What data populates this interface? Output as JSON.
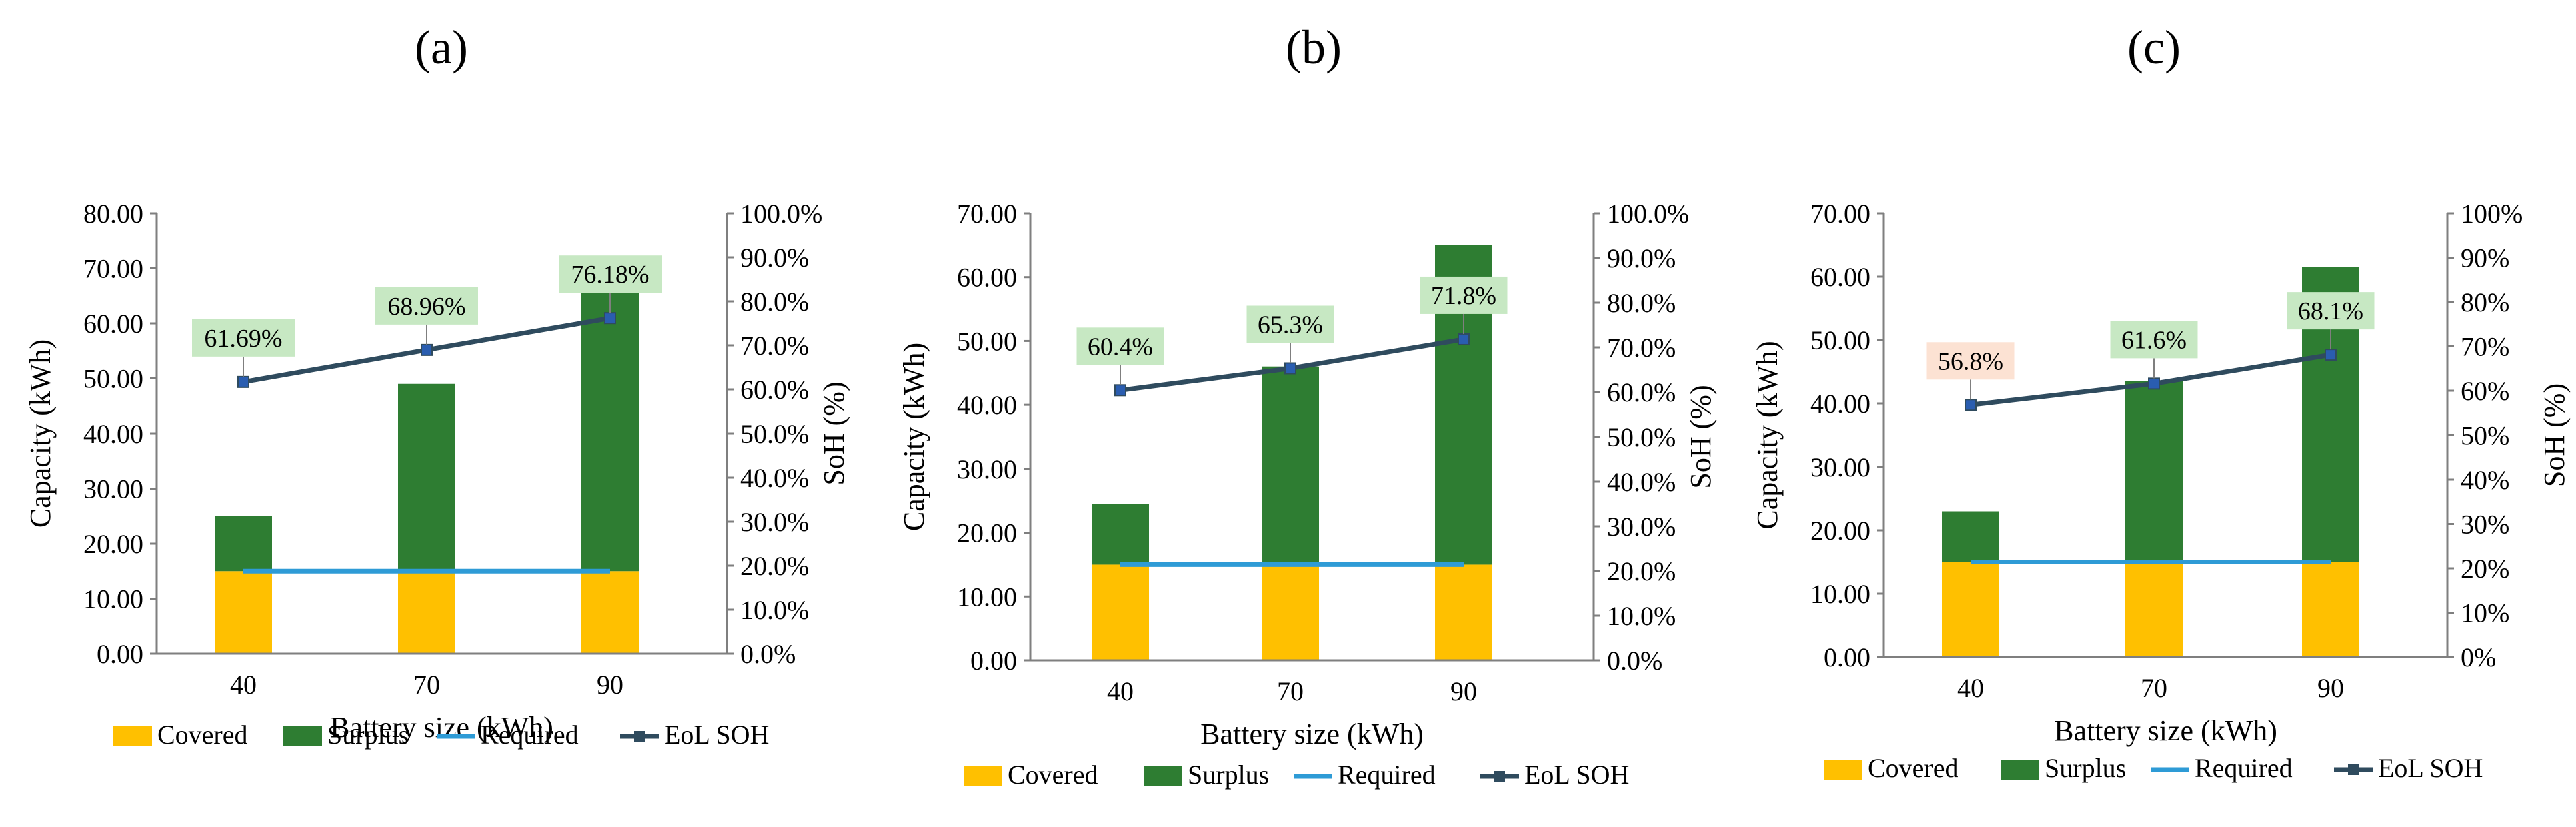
{
  "colors": {
    "covered": "#FFC000",
    "surplus": "#2E7D32",
    "required": "#2E9BD6",
    "eol_soh": "#2F4B5E",
    "axis": "#7f7f7f",
    "label_green": "#C7E8C3",
    "label_orange": "#FCE2D3"
  },
  "chart_data": [
    {
      "panel_label": "(a)",
      "type": "bar",
      "stacked": true,
      "categories": [
        "40",
        "70",
        "90"
      ],
      "series": [
        {
          "name": "Covered",
          "type": "bar",
          "values": [
            15,
            15,
            15
          ]
        },
        {
          "name": "Surplus",
          "type": "bar",
          "values": [
            10,
            34,
            54
          ]
        },
        {
          "name": "Required",
          "type": "line",
          "values": [
            15,
            15,
            15
          ]
        },
        {
          "name": "EoL SOH",
          "type": "line",
          "axis": "secondary",
          "values": [
            61.69,
            68.96,
            76.18
          ],
          "labels": [
            "61.69%",
            "68.96%",
            "76.18%"
          ],
          "label_style": [
            "green",
            "green",
            "green"
          ]
        }
      ],
      "xlabel": "Battery size (kWh)",
      "ylabel": "Capacity (kWh)",
      "y2label": "SoH (%)",
      "ylim": [
        0,
        80
      ],
      "yticks": [
        "0.00",
        "10.00",
        "20.00",
        "30.00",
        "40.00",
        "50.00",
        "60.00",
        "70.00",
        "80.00"
      ],
      "y2lim": [
        0,
        100
      ],
      "y2ticks": [
        "0.0%",
        "10.0%",
        "20.0%",
        "30.0%",
        "40.0%",
        "50.0%",
        "60.0%",
        "70.0%",
        "80.0%",
        "90.0%",
        "100.0%"
      ],
      "legend": [
        "Covered",
        "Surplus",
        "Required",
        "EoL SOH"
      ],
      "legend_position": "bottom"
    },
    {
      "panel_label": "(b)",
      "type": "bar",
      "stacked": true,
      "categories": [
        "40",
        "70",
        "90"
      ],
      "series": [
        {
          "name": "Covered",
          "type": "bar",
          "values": [
            15,
            15,
            15
          ]
        },
        {
          "name": "Surplus",
          "type": "bar",
          "values": [
            9.5,
            31,
            50
          ]
        },
        {
          "name": "Required",
          "type": "line",
          "values": [
            15,
            15,
            15
          ]
        },
        {
          "name": "EoL SOH",
          "type": "line",
          "axis": "secondary",
          "values": [
            60.4,
            65.3,
            71.8
          ],
          "labels": [
            "60.4%",
            "65.3%",
            "71.8%"
          ],
          "label_style": [
            "green",
            "green",
            "green"
          ]
        }
      ],
      "xlabel": "Battery size (kWh)",
      "ylabel": "Capacity (kWh)",
      "y2label": "SoH (%)",
      "ylim": [
        0,
        70
      ],
      "yticks": [
        "0.00",
        "10.00",
        "20.00",
        "30.00",
        "40.00",
        "50.00",
        "60.00",
        "70.00"
      ],
      "y2lim": [
        0,
        100
      ],
      "y2ticks": [
        "0.0%",
        "10.0%",
        "20.0%",
        "30.0%",
        "40.0%",
        "50.0%",
        "60.0%",
        "70.0%",
        "80.0%",
        "90.0%",
        "100.0%"
      ],
      "legend": [
        "Covered",
        "Surplus",
        "Required",
        "EoL SOH"
      ],
      "legend_position": "bottom"
    },
    {
      "panel_label": "(c)",
      "type": "bar",
      "stacked": true,
      "categories": [
        "40",
        "70",
        "90"
      ],
      "series": [
        {
          "name": "Covered",
          "type": "bar",
          "values": [
            15,
            15,
            15
          ]
        },
        {
          "name": "Surplus",
          "type": "bar",
          "values": [
            8,
            28.5,
            46.5
          ]
        },
        {
          "name": "Required",
          "type": "line",
          "values": [
            15,
            15,
            15
          ]
        },
        {
          "name": "EoL SOH",
          "type": "line",
          "axis": "secondary",
          "values": [
            56.8,
            61.6,
            68.1
          ],
          "labels": [
            "56.8%",
            "61.6%",
            "68.1%"
          ],
          "label_style": [
            "orange",
            "green",
            "green"
          ]
        }
      ],
      "xlabel": "Battery size (kWh)",
      "ylabel": "Capacity (kWh)",
      "y2label": "SoH (%)",
      "ylim": [
        0,
        70
      ],
      "yticks": [
        "0.00",
        "10.00",
        "20.00",
        "30.00",
        "40.00",
        "50.00",
        "60.00",
        "70.00"
      ],
      "y2lim": [
        0,
        100
      ],
      "y2ticks": [
        "0%",
        "10%",
        "20%",
        "30%",
        "40%",
        "50%",
        "60%",
        "70%",
        "80%",
        "90%",
        "100%"
      ],
      "legend": [
        "Covered",
        "Surplus",
        "Required",
        "EoL SOH"
      ],
      "legend_position": "bottom"
    }
  ]
}
